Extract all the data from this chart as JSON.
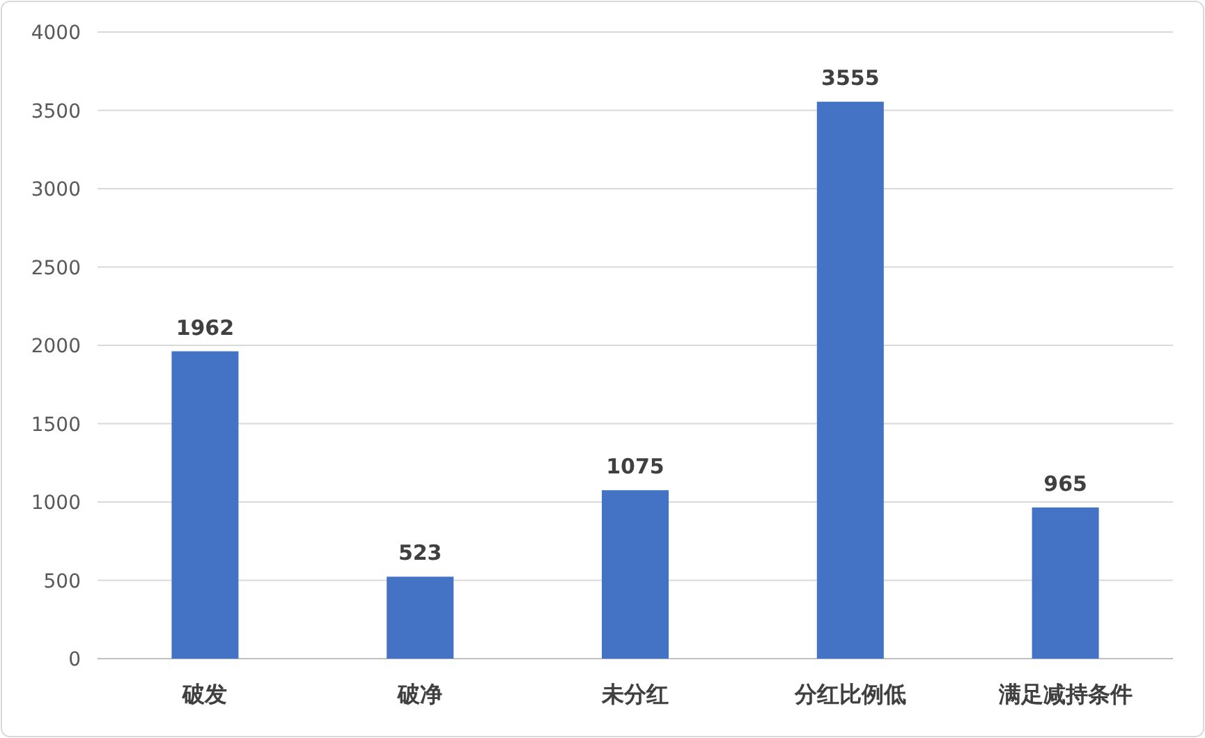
{
  "chart_data": {
    "type": "bar",
    "categories": [
      "破发",
      "破净",
      "未分红",
      "分红比例低",
      "满足减持条件"
    ],
    "values": [
      1962,
      523,
      1075,
      3555,
      965
    ],
    "color": "#4472c4",
    "ylim": [
      0,
      4000
    ],
    "yticks": [
      0,
      500,
      1000,
      1500,
      2000,
      2500,
      3000,
      3500,
      4000
    ],
    "grid": "y",
    "data_labels": true
  }
}
